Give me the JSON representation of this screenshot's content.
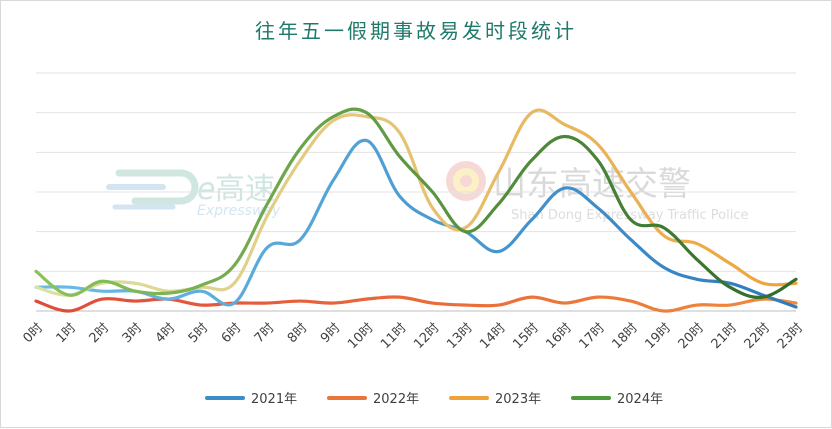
{
  "chart_data": {
    "type": "line",
    "title": "往年五一假期事故易发时段统计",
    "categories": [
      "0时",
      "1时",
      "2时",
      "3时",
      "4时",
      "5时",
      "6时",
      "7时",
      "8时",
      "9时",
      "10时",
      "11时",
      "12时",
      "13时",
      "14时",
      "15时",
      "16时",
      "17时",
      "18时",
      "19时",
      "20时",
      "21时",
      "22时",
      "23时"
    ],
    "ylim": [
      0,
      60
    ],
    "grid": true,
    "legend_position": "bottom",
    "series": [
      {
        "name": "2021年",
        "color": "#3a8dc6",
        "values": [
          6,
          6,
          5,
          5,
          3,
          5,
          2,
          16,
          18,
          33,
          43,
          29,
          23,
          20,
          15,
          23,
          31,
          26,
          18,
          11,
          8,
          7,
          4,
          1
        ]
      },
      {
        "name": "2022年",
        "color": "#e8763a",
        "values": [
          2.5,
          0,
          3,
          2.5,
          3,
          1.5,
          2,
          2,
          2.5,
          2,
          3,
          3.5,
          2,
          1.5,
          1.5,
          3.5,
          2,
          3.5,
          2.5,
          0,
          1.5,
          1.5,
          3,
          2
        ]
      },
      {
        "name": "2023年",
        "color": "#f0a23a",
        "values": [
          6,
          4,
          7,
          7,
          5,
          6,
          7,
          24,
          38,
          48,
          49,
          45,
          26,
          21,
          35,
          50,
          47,
          42,
          30,
          19,
          17,
          12,
          7,
          7
        ]
      },
      {
        "name": "2024年",
        "color": "#4f9a3c",
        "values": [
          10,
          4,
          7.5,
          5,
          4.5,
          6.5,
          11.5,
          27,
          41,
          49,
          50,
          39,
          30,
          20,
          27,
          38,
          44,
          38,
          23,
          21,
          13,
          6,
          3.5,
          8
        ]
      }
    ],
    "gradients": {
      "2021年": [
        "#6bbde6",
        "#2e7bbd"
      ],
      "2022年": [
        "#e04a3a",
        "#f08a3a"
      ],
      "2023年": [
        "#d9e2a8",
        "#f0a23a"
      ],
      "2024年": [
        "#8cc35a",
        "#2f6b2a"
      ]
    }
  },
  "watermarks": {
    "left_main": "高速",
    "left_sub": "Expressway",
    "right_main": "山东高速交警",
    "right_sub": "Shan Dong Expressway Traffic Police"
  }
}
